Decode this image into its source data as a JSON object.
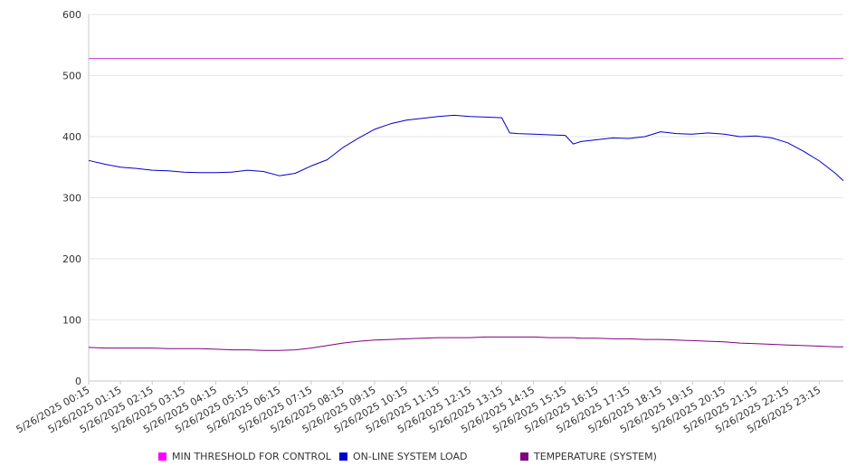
{
  "chart_data": {
    "type": "line",
    "title": "",
    "xlabel": "",
    "ylabel": "",
    "ylim": [
      0,
      600
    ],
    "yticks": [
      0,
      100,
      200,
      300,
      400,
      500,
      600
    ],
    "grid": true,
    "legend_placement": "bottom",
    "x_tick_labels": [
      "5/26/2025 00:15",
      "5/26/2025 01:15",
      "5/26/2025 02:15",
      "5/26/2025 03:15",
      "5/26/2025 04:15",
      "5/26/2025 05:15",
      "5/26/2025 06:15",
      "5/26/2025 07:15",
      "5/26/2025 08:15",
      "5/26/2025 09:15",
      "5/26/2025 10:15",
      "5/26/2025 11:15",
      "5/26/2025 12:15",
      "5/26/2025 13:15",
      "5/26/2025 14:15",
      "5/26/2025 15:15",
      "5/26/2025 16:15",
      "5/26/2025 17:15",
      "5/26/2025 18:15",
      "5/26/2025 19:15",
      "5/26/2025 20:15",
      "5/26/2025 21:15",
      "5/26/2025 22:15",
      "5/26/2025 23:15"
    ],
    "x": [
      "5/26/2025 00:15",
      "5/26/2025 00:45",
      "5/26/2025 01:15",
      "5/26/2025 01:45",
      "5/26/2025 02:15",
      "5/26/2025 02:45",
      "5/26/2025 03:15",
      "5/26/2025 03:45",
      "5/26/2025 04:15",
      "5/26/2025 04:45",
      "5/26/2025 05:15",
      "5/26/2025 05:45",
      "5/26/2025 06:15",
      "5/26/2025 06:45",
      "5/26/2025 07:15",
      "5/26/2025 07:45",
      "5/26/2025 08:15",
      "5/26/2025 08:45",
      "5/26/2025 09:15",
      "5/26/2025 09:45",
      "5/26/2025 10:15",
      "5/26/2025 10:45",
      "5/26/2025 11:15",
      "5/26/2025 11:45",
      "5/26/2025 12:15",
      "5/26/2025 12:45",
      "5/26/2025 13:15",
      "5/26/2025 13:30",
      "5/26/2025 13:45",
      "5/26/2025 14:15",
      "5/26/2025 14:45",
      "5/26/2025 15:15",
      "5/26/2025 15:30",
      "5/26/2025 15:45",
      "5/26/2025 16:15",
      "5/26/2025 16:45",
      "5/26/2025 17:15",
      "5/26/2025 17:45",
      "5/26/2025 18:15",
      "5/26/2025 18:45",
      "5/26/2025 19:15",
      "5/26/2025 19:45",
      "5/26/2025 20:15",
      "5/26/2025 20:45",
      "5/26/2025 21:15",
      "5/26/2025 21:45",
      "5/26/2025 22:15",
      "5/26/2025 22:45",
      "5/26/2025 23:15",
      "5/26/2025 23:45",
      "5/27/2025 00:00"
    ],
    "series": [
      {
        "name": "MIN THRESHOLD FOR CONTROL",
        "color": "#cc33cc",
        "values": [
          528,
          528,
          528,
          528,
          528,
          528,
          528,
          528,
          528,
          528,
          528,
          528,
          528,
          528,
          528,
          528,
          528,
          528,
          528,
          528,
          528,
          528,
          528,
          528,
          528,
          528,
          528,
          528,
          528,
          528,
          528,
          528,
          528,
          528,
          528,
          528,
          528,
          528,
          528,
          528,
          528,
          528,
          528,
          528,
          528,
          528,
          528,
          528,
          528,
          528,
          528
        ]
      },
      {
        "name": "ON-LINE SYSTEM LOAD",
        "color": "#0000cc",
        "values": [
          361,
          355,
          350,
          348,
          345,
          344,
          342,
          341,
          341,
          342,
          345,
          343,
          336,
          340,
          352,
          362,
          382,
          398,
          412,
          421,
          427,
          430,
          433,
          435,
          433,
          432,
          431,
          406,
          405,
          404,
          403,
          402,
          388,
          392,
          395,
          398,
          397,
          400,
          408,
          405,
          404,
          406,
          404,
          400,
          401,
          398,
          390,
          376,
          360,
          340,
          328
        ]
      },
      {
        "name": "TEMPERATURE (SYSTEM)",
        "color": "#800080",
        "values": [
          55,
          54,
          54,
          54,
          54,
          53,
          53,
          53,
          52,
          51,
          51,
          50,
          50,
          51,
          54,
          58,
          62,
          65,
          67,
          68,
          69,
          70,
          71,
          71,
          71,
          72,
          72,
          72,
          72,
          72,
          71,
          71,
          71,
          70,
          70,
          69,
          69,
          68,
          68,
          67,
          66,
          65,
          64,
          62,
          61,
          60,
          59,
          58,
          57,
          56,
          56
        ]
      }
    ]
  },
  "legend": [
    {
      "label": "MIN THRESHOLD FOR CONTROL",
      "color": "#ff00ff"
    },
    {
      "label": "ON-LINE SYSTEM LOAD",
      "color": "#0000cc"
    },
    {
      "label": "TEMPERATURE (SYSTEM)",
      "color": "#800080"
    }
  ]
}
